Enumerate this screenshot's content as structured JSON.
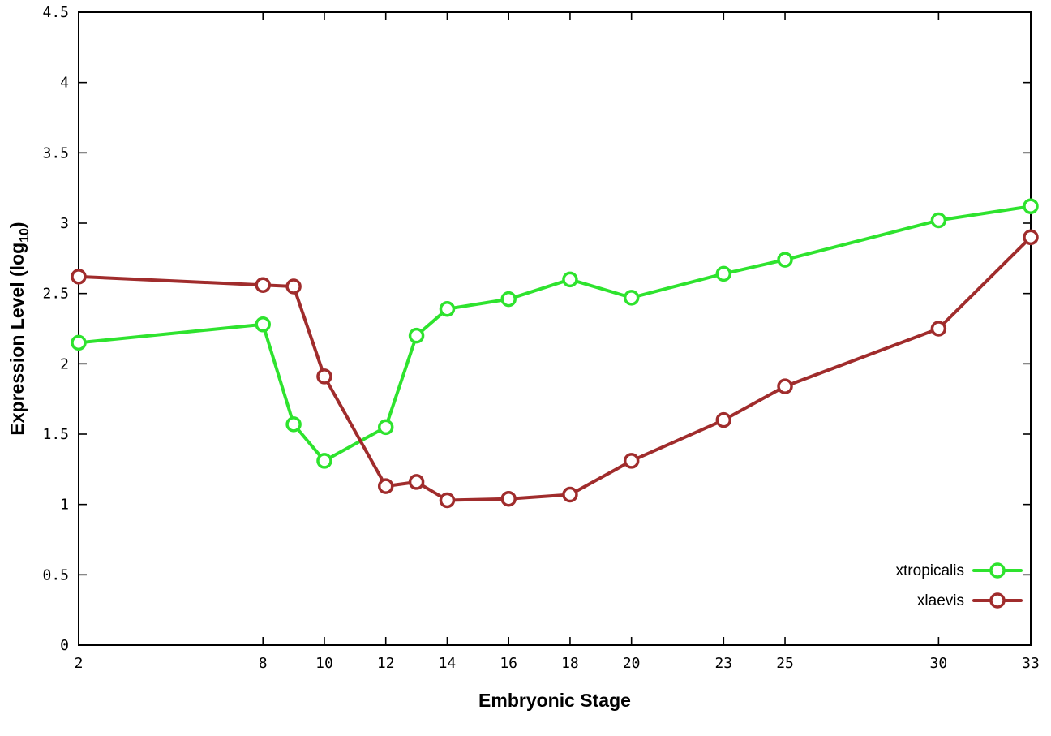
{
  "figure": {
    "xlabel": "Embryonic Stage",
    "ylabel_prefix": "Expression Level (log",
    "ylabel_sub": "10",
    "ylabel_suffix": ")"
  },
  "chart_data": {
    "type": "line",
    "title": "",
    "xlabel": "Embryonic Stage",
    "ylabel": "Expression Level (log10)",
    "xlim": [
      2,
      33
    ],
    "ylim": [
      0,
      4.5
    ],
    "xticks": [
      2,
      8,
      10,
      12,
      14,
      16,
      18,
      20,
      23,
      25,
      30,
      33
    ],
    "yticks": [
      0,
      0.5,
      1,
      1.5,
      2,
      2.5,
      3,
      3.5,
      4,
      4.5
    ],
    "grid": false,
    "legend_position": "bottom-right",
    "x": [
      2,
      8,
      9,
      10,
      12,
      13,
      14,
      16,
      18,
      20,
      23,
      25,
      30,
      33
    ],
    "series": [
      {
        "name": "xtropicalis",
        "color": "#2ee32e",
        "values": [
          2.15,
          2.28,
          1.57,
          1.31,
          1.55,
          2.2,
          2.39,
          2.46,
          2.6,
          2.47,
          2.64,
          2.74,
          3.02,
          3.12
        ]
      },
      {
        "name": "xlaevis",
        "color": "#a02c2c",
        "values": [
          2.62,
          2.56,
          2.55,
          1.91,
          1.13,
          1.16,
          1.03,
          1.04,
          1.07,
          1.31,
          1.6,
          1.84,
          2.25,
          2.9
        ]
      }
    ]
  }
}
